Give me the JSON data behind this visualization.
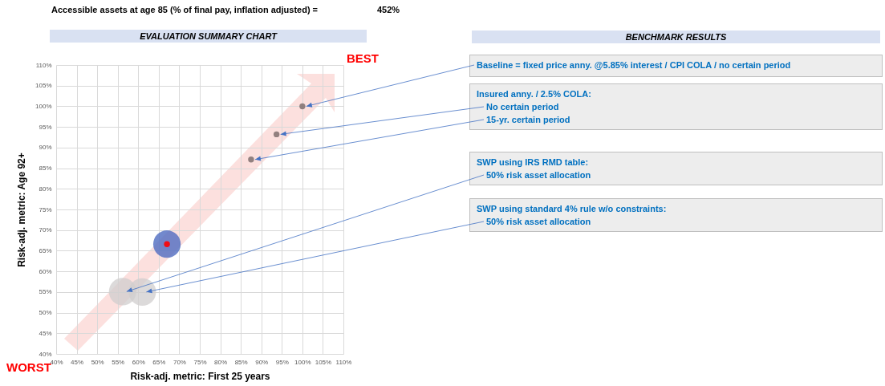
{
  "chart_data": {
    "type": "bubble",
    "title": "EVALUATION SUMMARY CHART",
    "xlabel": "Risk-adj. metric: First 25 years",
    "ylabel": "Risk-adj. metric: Age 92+",
    "xlim": [
      40,
      110
    ],
    "ylim": [
      40,
      110
    ],
    "xticks": [
      {
        "value": 40,
        "label": "40%"
      },
      {
        "value": 45,
        "label": "45%"
      },
      {
        "value": 50,
        "label": "50%"
      },
      {
        "value": 55,
        "label": "55%"
      },
      {
        "value": 60,
        "label": "60%"
      },
      {
        "value": 65,
        "label": "65%"
      },
      {
        "value": 70,
        "label": "70%"
      },
      {
        "value": 75,
        "label": "75%"
      },
      {
        "value": 80,
        "label": "80%"
      },
      {
        "value": 85,
        "label": "85%"
      },
      {
        "value": 90,
        "label": "90%"
      },
      {
        "value": 95,
        "label": "95%"
      },
      {
        "value": 100,
        "label": "100%"
      },
      {
        "value": 105,
        "label": "105%"
      },
      {
        "value": 110,
        "label": "110%"
      }
    ],
    "yticks": [
      {
        "value": 40,
        "label": "40%"
      },
      {
        "value": 45,
        "label": "45%"
      },
      {
        "value": 50,
        "label": "50%"
      },
      {
        "value": 55,
        "label": "55%"
      },
      {
        "value": 60,
        "label": "60%"
      },
      {
        "value": 65,
        "label": "65%"
      },
      {
        "value": 70,
        "label": "70%"
      },
      {
        "value": 75,
        "label": "75%"
      },
      {
        "value": 80,
        "label": "80%"
      },
      {
        "value": 85,
        "label": "85%"
      },
      {
        "value": 90,
        "label": "90%"
      },
      {
        "value": 95,
        "label": "95%"
      },
      {
        "value": 100,
        "label": "100%"
      },
      {
        "value": 105,
        "label": "105%"
      },
      {
        "value": 110,
        "label": "110%"
      }
    ],
    "grid": true,
    "series": [
      {
        "color": "#d0cece",
        "x": [
          56.2,
          61
        ],
        "values": [
          55.1,
          55
        ],
        "sizes": [
          1,
          1
        ]
      },
      {
        "color": "#4f6cc0",
        "x": [
          67
        ],
        "values": [
          66.6
        ],
        "sizes": [
          1
        ]
      },
      {
        "type": "scatter",
        "marker": "circle",
        "color": "#7f6f6f",
        "x": [
          100,
          93.7,
          87.5
        ],
        "values": [
          100,
          93.2,
          87.1
        ]
      },
      {
        "type": "scatter",
        "marker": "circle",
        "color": "#ff0000",
        "x": [
          67
        ],
        "values": [
          66.6
        ]
      }
    ],
    "annotations": [
      "Accessible assets at age 85 (% of final pay, inflation adjusted) =",
      "452%",
      "BENCHMARK RESULTS",
      "BEST",
      "WORST",
      {
        "text": "Baseline = fixed price anny. @5.85% interest / CPI COLA / no certain period",
        "x": 100,
        "y": 100
      },
      "Insured anny. / 2.5% COLA:",
      {
        "text": "No certain period",
        "x": 93.7,
        "y": 93.2
      },
      {
        "text": "15-yr. certain period",
        "x": 87.5,
        "y": 87.1
      },
      "SWP using IRS RMD table:",
      {
        "text": "50% risk asset allocation",
        "x": 56.2,
        "y": 55.1
      },
      "SWP using standard 4% rule w/o constraints:",
      {
        "text": "50% risk asset allocation",
        "x": 61,
        "y": 55
      }
    ]
  }
}
